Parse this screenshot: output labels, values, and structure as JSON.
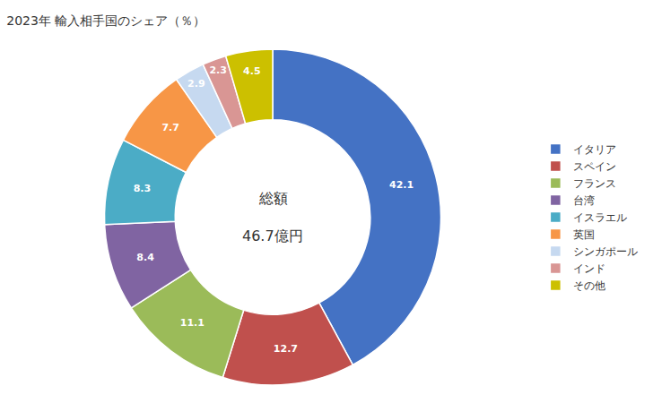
{
  "chart_data": {
    "type": "donut",
    "title": "2023年 輸入相手国のシェア（％）",
    "annotations": [
      "総額",
      "46.7億円"
    ],
    "categories": [
      "イタリア",
      "スペイン",
      "フランス",
      "台湾",
      "イスラエル",
      "英国",
      "シンガポール",
      "インド",
      "その他"
    ],
    "values": [
      42.1,
      12.7,
      11.1,
      8.4,
      8.3,
      7.7,
      2.9,
      2.3,
      4.5
    ],
    "colors": [
      "#4472C4",
      "#C0504D",
      "#9BBB59",
      "#8064A2",
      "#4BACC6",
      "#F79646",
      "#C6D9F0",
      "#D99694",
      "#CCC000"
    ],
    "data_labels": true,
    "legend": "right"
  }
}
